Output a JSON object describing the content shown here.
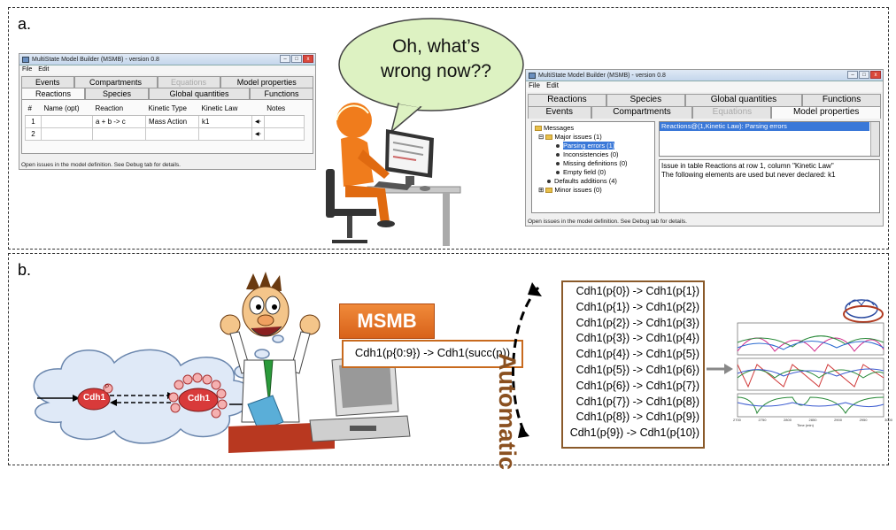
{
  "panel_a": {
    "label": "a.",
    "bubble_text": "Oh, what’s wrong now??",
    "window_left": {
      "title": "MultiState Model Builder (MSMB) - version 0.8",
      "menu": [
        "File",
        "Edit"
      ],
      "tabs_row1": [
        "Events",
        "Compartments",
        "Equations",
        "Model properties"
      ],
      "tabs_row2": [
        "Reactions",
        "Species",
        "Global quantities",
        "Functions"
      ],
      "columns": [
        "#",
        "Name (opt)",
        "Reaction",
        "Kinetic Type",
        "Kinetic Law",
        "",
        "Notes"
      ],
      "rows": [
        {
          "num": "1",
          "name": "",
          "reaction": "a + b -> c",
          "kinetic_type": "Mass Action",
          "kinetic_law": "k1"
        },
        {
          "num": "2",
          "name": "",
          "reaction": "",
          "kinetic_type": "",
          "kinetic_law": ""
        }
      ],
      "status": "Open issues in the model definition. See Debug tab for details."
    },
    "window_right": {
      "title": "MultiState Model Builder (MSMB) - version 0.8",
      "menu": [
        "File",
        "Edit"
      ],
      "tabs_row1": [
        "Reactions",
        "Species",
        "Global quantities",
        "Functions"
      ],
      "tabs_row2": [
        "Events",
        "Compartments",
        "Equations",
        "Model properties"
      ],
      "tree": {
        "root": "Messages",
        "major": "Major issues (1)",
        "parsing": "Parsing errors (1)",
        "inconsistencies": "Inconsistencies (0)",
        "missing": "Missing definitions (0)",
        "empty": "Empty field (0)",
        "defaults": "Defaults additions (4)",
        "minor": "Minor issues (0)"
      },
      "selected_issue": "Reactions@(1,Kinetic Law): Parsing errors",
      "detail_line1": "Issue in table Reactions at row 1, column \"Kinetic Law\"",
      "detail_line2": "The following elements are used but never declared: k1",
      "status": "Open issues in the model definition. See Debug tab for details."
    }
  },
  "panel_b": {
    "label": "b.",
    "cloud_species": "Cdh1",
    "phospho_label": "P",
    "msmb_label": "MSMB",
    "compact_rule": "Cdh1(p{0:9}) -> Cdh1(succ(p))",
    "automatic_label": "Automatic",
    "expanded_rules": [
      "Cdh1(p{0}) -> Cdh1(p{1})",
      "Cdh1(p{1}) -> Cdh1(p{2})",
      "Cdh1(p{2}) -> Cdh1(p{3})",
      "Cdh1(p{3}) -> Cdh1(p{4})",
      "Cdh1(p{4}) -> Cdh1(p{5})",
      "Cdh1(p{5}) -> Cdh1(p{6})",
      "Cdh1(p{6}) -> Cdh1(p{7})",
      "Cdh1(p{7}) -> Cdh1(p{8})",
      "Cdh1(p{8}) -> Cdh1(p{9})",
      "Cdh1(p{9}) -> Cdh1(p{10})"
    ],
    "plot_axis_label": "Time (min)",
    "plot_ticks": [
      "2700",
      "2750",
      "2800",
      "2850",
      "2900",
      "2950",
      "3000"
    ]
  },
  "colors": {
    "error_cell": "#f26a1b",
    "msmb_orange": "#e0721f",
    "rules_border": "#8a5a2a",
    "selection_blue": "#3a78d8"
  }
}
